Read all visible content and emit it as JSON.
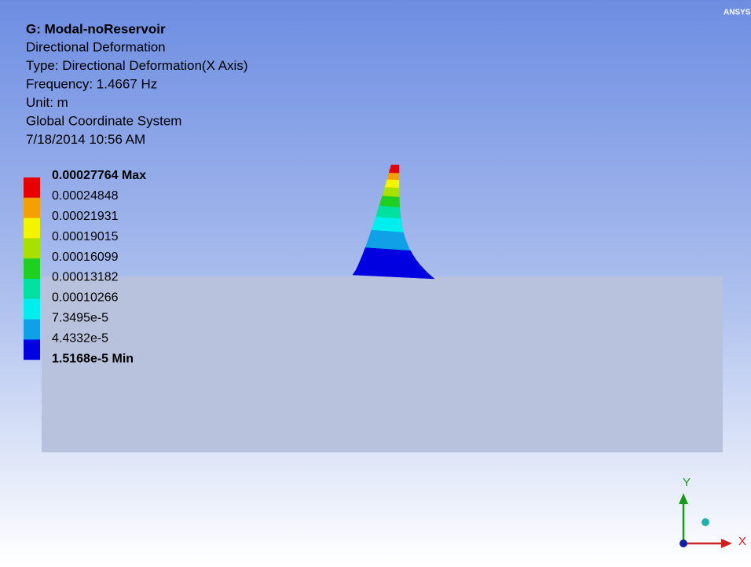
{
  "header": {
    "title": "G: Modal-noReservoir",
    "lines": [
      "Directional Deformation",
      "Type: Directional Deformation(X Axis)",
      "Frequency: 1.4667 Hz",
      "Unit: m",
      "Global Coordinate System",
      "7/18/2014 10:56 AM"
    ]
  },
  "legend": {
    "labels": [
      "0.00027764 Max",
      "0.00024848",
      "0.00021931",
      "0.00019015",
      "0.00016099",
      "0.00013182",
      "0.00010266",
      "7.3495e-5",
      "4.4332e-5",
      "1.5168e-5 Min"
    ],
    "colors": [
      "#e80000",
      "#f4a000",
      "#f4f400",
      "#a8e000",
      "#20d020",
      "#00e0a0",
      "#00eeee",
      "#10a0e8",
      "#0000e0"
    ]
  },
  "logo": "ANSYS",
  "triad": {
    "y": "Y",
    "x": "X"
  }
}
